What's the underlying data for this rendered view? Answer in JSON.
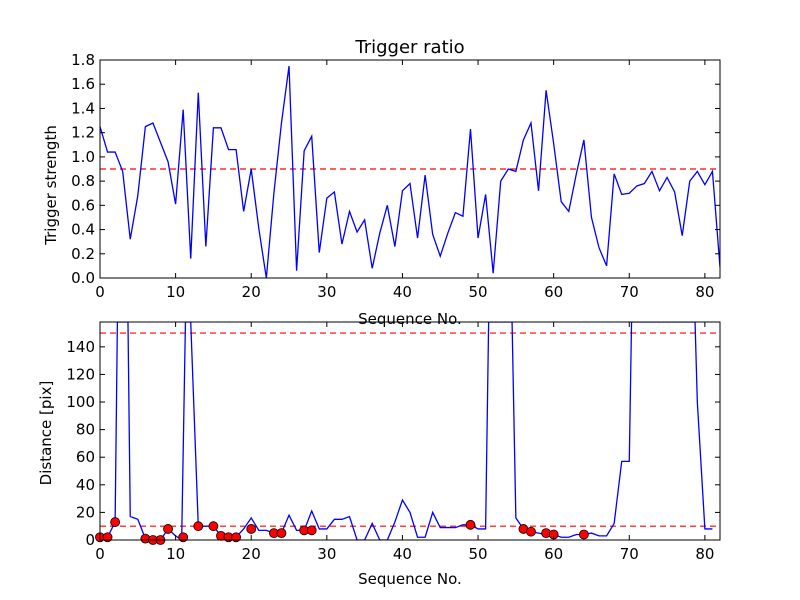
{
  "chart_data": [
    {
      "type": "line",
      "title": "Trigger ratio",
      "xlabel": "Sequence No.",
      "ylabel": "Trigger strength",
      "xlim": [
        0,
        82
      ],
      "ylim": [
        0,
        1.8
      ],
      "xticks": [
        0,
        10,
        20,
        30,
        40,
        50,
        60,
        70,
        80
      ],
      "yticks": [
        0.0,
        0.2,
        0.4,
        0.6,
        0.8,
        1.0,
        1.2,
        1.4,
        1.6,
        1.8
      ],
      "ytick_labels": [
        "0.0",
        "0.2",
        "0.4",
        "0.6",
        "0.8",
        "1.0",
        "1.2",
        "1.4",
        "1.6",
        "1.8"
      ],
      "grid": false,
      "series": [
        {
          "color": "#0000ff",
          "x": [
            0,
            1,
            2,
            3,
            4,
            5,
            6,
            7,
            8,
            9,
            10,
            11,
            12,
            13,
            14,
            15,
            16,
            17,
            18,
            19,
            20,
            21,
            22,
            23,
            24,
            25,
            26,
            27,
            28,
            29,
            30,
            31,
            32,
            33,
            34,
            35,
            36,
            37,
            38,
            39,
            40,
            41,
            42,
            43,
            44,
            45,
            46,
            47,
            48,
            49,
            50,
            51,
            52,
            53,
            54,
            55,
            56,
            57,
            58,
            59,
            60,
            61,
            62,
            63,
            64,
            65,
            66,
            67,
            68,
            69,
            70,
            71,
            72,
            73,
            74,
            75,
            76,
            77,
            78,
            79,
            80,
            81,
            82
          ],
          "y": [
            1.25,
            1.04,
            1.04,
            0.88,
            0.32,
            0.68,
            1.25,
            1.28,
            1.12,
            0.96,
            0.61,
            1.39,
            0.16,
            1.53,
            0.26,
            1.24,
            1.24,
            1.06,
            1.06,
            0.55,
            0.9,
            0.41,
            0.0,
            0.7,
            1.28,
            1.75,
            0.06,
            1.05,
            1.17,
            0.21,
            0.66,
            0.71,
            0.28,
            0.55,
            0.38,
            0.48,
            0.08,
            0.37,
            0.6,
            0.26,
            0.72,
            0.78,
            0.33,
            0.85,
            0.36,
            0.18,
            0.37,
            0.54,
            0.51,
            1.23,
            0.33,
            0.69,
            0.04,
            0.8,
            0.9,
            0.88,
            1.14,
            1.28,
            0.72,
            1.55,
            1.11,
            0.63,
            0.55,
            0.86,
            1.14,
            0.5,
            0.25,
            0.1,
            0.86,
            0.69,
            0.7,
            0.76,
            0.78,
            0.88,
            0.72,
            0.83,
            0.71,
            0.35,
            0.8,
            0.88,
            0.77,
            0.88,
            0.09
          ]
        }
      ],
      "threshold_lines": [
        {
          "y": 0.9,
          "color": "#ff0000",
          "style": "dashed"
        }
      ]
    },
    {
      "type": "line",
      "title": "",
      "xlabel": "Sequence No.",
      "ylabel": "Distance [pix]",
      "xlim": [
        0,
        82
      ],
      "ylim": [
        0,
        158
      ],
      "xticks": [
        0,
        10,
        20,
        30,
        40,
        50,
        60,
        70,
        80
      ],
      "yticks": [
        0,
        20,
        40,
        60,
        80,
        100,
        120,
        140
      ],
      "ytick_labels": [
        "0",
        "20",
        "40",
        "60",
        "80",
        "100",
        "120",
        "140"
      ],
      "grid": false,
      "series": [
        {
          "color": "#0000ff",
          "x": [
            0,
            1,
            2,
            2.3,
            3.7,
            4,
            5,
            6,
            7,
            8,
            9,
            10,
            10.8,
            11.3,
            12,
            13,
            14,
            15,
            16,
            17,
            18,
            19,
            20,
            21,
            22,
            23,
            24,
            25,
            26,
            27,
            28,
            29,
            30,
            31,
            32,
            33,
            34,
            35,
            36,
            37,
            38,
            39,
            40,
            41,
            42,
            43,
            44,
            45,
            46,
            47,
            48,
            49,
            50,
            51,
            51.4,
            54.5,
            55,
            56,
            57,
            58,
            59,
            60,
            61,
            62,
            63,
            64,
            65,
            66,
            67,
            68,
            69,
            70,
            70.3,
            78.7,
            79,
            80,
            81
          ],
          "y": [
            2,
            2,
            13,
            158,
            158,
            17,
            15,
            1,
            0,
            0,
            8,
            3,
            0,
            158,
            158,
            10,
            10,
            10,
            3,
            2,
            2,
            8,
            16,
            7,
            7,
            5,
            5,
            18,
            7,
            7,
            21,
            8,
            8,
            15,
            15,
            17,
            0,
            0,
            12,
            0,
            0,
            13,
            29,
            20,
            2,
            2,
            20,
            9,
            9,
            9,
            11,
            11,
            8,
            8,
            158,
            158,
            16,
            8,
            6,
            5,
            4,
            4,
            2,
            2,
            4,
            4,
            5,
            3,
            3,
            12,
            57,
            57,
            158,
            158,
            100,
            8,
            8
          ]
        }
      ],
      "markers": {
        "color": "#ff0000",
        "shape": "circle",
        "x": [
          0,
          1,
          2,
          6,
          7,
          8,
          9,
          11,
          13,
          15,
          16,
          17,
          18,
          20,
          23,
          24,
          27,
          28,
          49,
          56,
          57,
          59,
          60,
          64
        ],
        "y": [
          2,
          2,
          13,
          1,
          0,
          0,
          8,
          2,
          10,
          10,
          3,
          2,
          2,
          8,
          5,
          5,
          7,
          7,
          11,
          8,
          6,
          5,
          4,
          4
        ]
      },
      "threshold_lines": [
        {
          "y": 150,
          "color": "#ff0000",
          "style": "dashed"
        },
        {
          "y": 10,
          "color": "#ff0000",
          "style": "dashed"
        }
      ]
    }
  ]
}
